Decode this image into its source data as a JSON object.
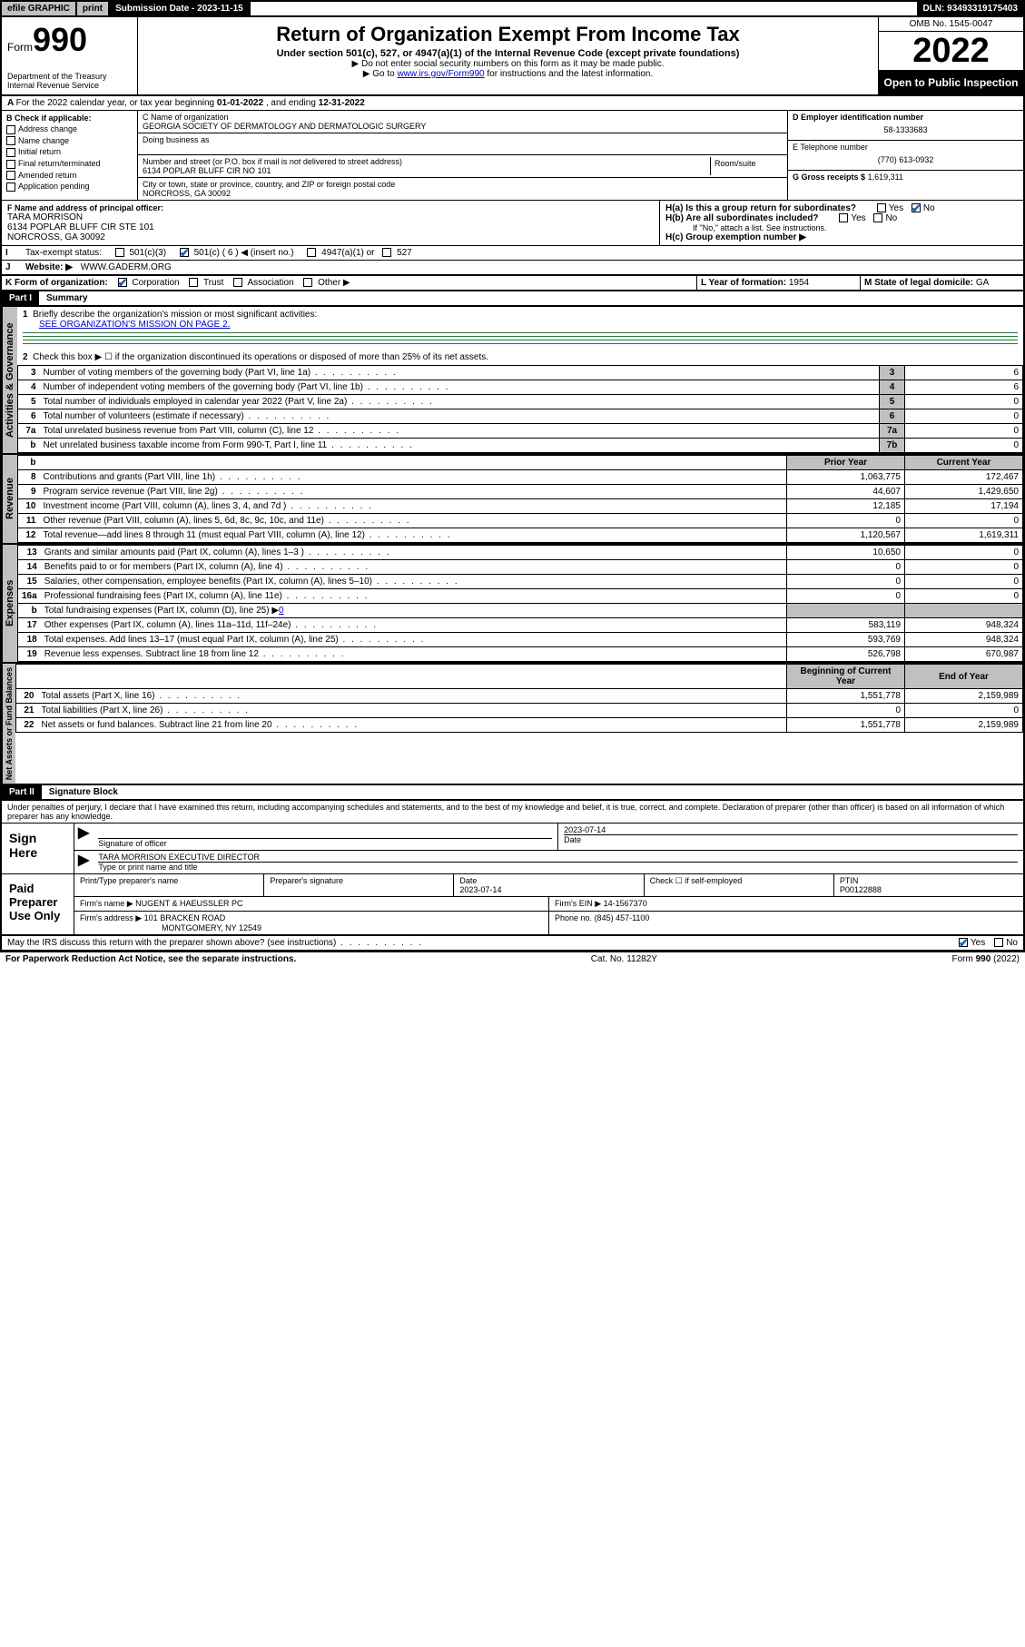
{
  "topbar": {
    "efile": "efile GRAPHIC",
    "print": "print",
    "sub_date_label": "Submission Date - ",
    "sub_date": "2023-11-15",
    "dln": "DLN: 93493319175403"
  },
  "header": {
    "form_word": "Form",
    "form_num": "990",
    "dept": "Department of the Treasury\nInternal Revenue Service",
    "title": "Return of Organization Exempt From Income Tax",
    "sub1": "Under section 501(c), 527, or 4947(a)(1) of the Internal Revenue Code (except private foundations)",
    "sub2a": "▶ Do not enter social security numbers on this form as it may be made public.",
    "sub2b_pre": "▶ Go to ",
    "sub2b_link": "www.irs.gov/Form990",
    "sub2b_post": " for instructions and the latest information.",
    "omb": "OMB No. 1545-0047",
    "year": "2022",
    "open": "Open to Public Inspection"
  },
  "lineA": {
    "text_pre": "For the 2022 calendar year, or tax year beginning ",
    "begin": "01-01-2022",
    "mid": " , and ending ",
    "end": "12-31-2022"
  },
  "secB": {
    "label": "B Check if applicable:",
    "opts": [
      "Address change",
      "Name change",
      "Initial return",
      "Final return/terminated",
      "Amended return",
      "Application pending"
    ]
  },
  "secC": {
    "label": "C Name of organization",
    "name": "GEORGIA SOCIETY OF DERMATOLOGY AND DERMATOLOGIC SURGERY",
    "dba_label": "Doing business as",
    "addr_label": "Number and street (or P.O. box if mail is not delivered to street address)",
    "room_label": "Room/suite",
    "addr": "6134 POPLAR BLUFF CIR NO 101",
    "city_label": "City or town, state or province, country, and ZIP or foreign postal code",
    "city": "NORCROSS, GA  30092"
  },
  "secD": {
    "label": "D Employer identification number",
    "val": "58-1333683"
  },
  "secE": {
    "label": "E Telephone number",
    "val": "(770) 613-0932"
  },
  "secG": {
    "label": "G Gross receipts $",
    "val": "1,619,311"
  },
  "secF": {
    "label": "F Name and address of principal officer:",
    "name": "TARA MORRISON",
    "addr1": "6134 POPLAR BLUFF CIR STE 101",
    "addr2": "NORCROSS, GA  30092"
  },
  "secH": {
    "a": "H(a)  Is this a group return for subordinates?",
    "b": "H(b)  Are all subordinates included?",
    "b_note": "If \"No,\" attach a list. See instructions.",
    "c": "H(c)  Group exemption number ▶",
    "yes": "Yes",
    "no": "No"
  },
  "secI": {
    "label": "Tax-exempt status:",
    "o1": "501(c)(3)",
    "o2": "501(c) ( 6 ) ◀ (insert no.)",
    "o3": "4947(a)(1) or",
    "o4": "527"
  },
  "secJ": {
    "label": "Website: ▶",
    "val": "WWW.GADERM.ORG"
  },
  "secK": {
    "label": "K Form of organization:",
    "o1": "Corporation",
    "o2": "Trust",
    "o3": "Association",
    "o4": "Other ▶"
  },
  "secL": {
    "label": "L Year of formation:",
    "val": "1954"
  },
  "secM": {
    "label": "M State of legal domicile:",
    "val": "GA"
  },
  "part1": {
    "hd": "Part I",
    "title": "Summary"
  },
  "summary": {
    "l1": "Briefly describe the organization's mission or most significant activities:",
    "l1v": "SEE ORGANIZATION'S MISSION ON PAGE 2.",
    "l2": "Check this box ▶ ☐  if the organization discontinued its operations or disposed of more than 25% of its net assets.",
    "rows_gov": [
      {
        "n": "3",
        "t": "Number of voting members of the governing body (Part VI, line 1a)",
        "c": "3",
        "v": "6"
      },
      {
        "n": "4",
        "t": "Number of independent voting members of the governing body (Part VI, line 1b)",
        "c": "4",
        "v": "6"
      },
      {
        "n": "5",
        "t": "Total number of individuals employed in calendar year 2022 (Part V, line 2a)",
        "c": "5",
        "v": "0"
      },
      {
        "n": "6",
        "t": "Total number of volunteers (estimate if necessary)",
        "c": "6",
        "v": "0"
      },
      {
        "n": "7a",
        "t": "Total unrelated business revenue from Part VIII, column (C), line 12",
        "c": "7a",
        "v": "0"
      },
      {
        "n": "b",
        "t": "Net unrelated business taxable income from Form 990-T, Part I, line 11",
        "c": "7b",
        "v": "0"
      }
    ],
    "hdr_prior": "Prior Year",
    "hdr_curr": "Current Year",
    "rows_rev": [
      {
        "n": "8",
        "t": "Contributions and grants (Part VIII, line 1h)",
        "p": "1,063,775",
        "c": "172,467"
      },
      {
        "n": "9",
        "t": "Program service revenue (Part VIII, line 2g)",
        "p": "44,607",
        "c": "1,429,650"
      },
      {
        "n": "10",
        "t": "Investment income (Part VIII, column (A), lines 3, 4, and 7d )",
        "p": "12,185",
        "c": "17,194"
      },
      {
        "n": "11",
        "t": "Other revenue (Part VIII, column (A), lines 5, 6d, 8c, 9c, 10c, and 11e)",
        "p": "0",
        "c": "0"
      },
      {
        "n": "12",
        "t": "Total revenue—add lines 8 through 11 (must equal Part VIII, column (A), line 12)",
        "p": "1,120,567",
        "c": "1,619,311"
      }
    ],
    "rows_exp": [
      {
        "n": "13",
        "t": "Grants and similar amounts paid (Part IX, column (A), lines 1–3 )",
        "p": "10,650",
        "c": "0"
      },
      {
        "n": "14",
        "t": "Benefits paid to or for members (Part IX, column (A), line 4)",
        "p": "0",
        "c": "0"
      },
      {
        "n": "15",
        "t": "Salaries, other compensation, employee benefits (Part IX, column (A), lines 5–10)",
        "p": "0",
        "c": "0"
      },
      {
        "n": "16a",
        "t": "Professional fundraising fees (Part IX, column (A), line 11e)",
        "p": "0",
        "c": "0"
      }
    ],
    "l16b_pre": "Total fundraising expenses (Part IX, column (D), line 25) ▶",
    "l16b_val": "0",
    "rows_exp2": [
      {
        "n": "17",
        "t": "Other expenses (Part IX, column (A), lines 11a–11d, 11f–24e)",
        "p": "583,119",
        "c": "948,324"
      },
      {
        "n": "18",
        "t": "Total expenses. Add lines 13–17 (must equal Part IX, column (A), line 25)",
        "p": "593,769",
        "c": "948,324"
      },
      {
        "n": "19",
        "t": "Revenue less expenses. Subtract line 18 from line 12",
        "p": "526,798",
        "c": "670,987"
      }
    ],
    "hdr_beg": "Beginning of Current Year",
    "hdr_end": "End of Year",
    "rows_net": [
      {
        "n": "20",
        "t": "Total assets (Part X, line 16)",
        "p": "1,551,778",
        "c": "2,159,989"
      },
      {
        "n": "21",
        "t": "Total liabilities (Part X, line 26)",
        "p": "0",
        "c": "0"
      },
      {
        "n": "22",
        "t": "Net assets or fund balances. Subtract line 21 from line 20",
        "p": "1,551,778",
        "c": "2,159,989"
      }
    ],
    "vtabs": {
      "gov": "Activities & Governance",
      "rev": "Revenue",
      "exp": "Expenses",
      "net": "Net Assets or Fund Balances"
    }
  },
  "part2": {
    "hd": "Part II",
    "title": "Signature Block"
  },
  "sig": {
    "penalty": "Under penalties of perjury, I declare that I have examined this return, including accompanying schedules and statements, and to the best of my knowledge and belief, it is true, correct, and complete. Declaration of preparer (other than officer) is based on all information of which preparer has any knowledge.",
    "sign_here": "Sign Here",
    "sig_officer": "Signature of officer",
    "date_label": "Date",
    "date1": "2023-07-14",
    "officer_name": "TARA MORRISON  EXECUTIVE DIRECTOR",
    "type_name": "Type or print name and title",
    "paid": "Paid Preparer Use Only",
    "prep_name_label": "Print/Type preparer's name",
    "prep_sig_label": "Preparer's signature",
    "prep_date": "2023-07-14",
    "check_self": "Check ☐ if self-employed",
    "ptin_label": "PTIN",
    "ptin": "P00122888",
    "firm_name_label": "Firm's name ▶",
    "firm_name": "NUGENT & HAEUSSLER PC",
    "firm_ein_label": "Firm's EIN ▶",
    "firm_ein": "14-1567370",
    "firm_addr_label": "Firm's address ▶",
    "firm_addr1": "101 BRACKEN ROAD",
    "firm_addr2": "MONTGOMERY, NY  12549",
    "phone_label": "Phone no.",
    "phone": "(845) 457-1100",
    "discuss": "May the IRS discuss this return with the preparer shown above? (see instructions)",
    "yes": "Yes",
    "no": "No"
  },
  "footer": {
    "left": "For Paperwork Reduction Act Notice, see the separate instructions.",
    "mid": "Cat. No. 11282Y",
    "right": "Form 990 (2022)"
  }
}
